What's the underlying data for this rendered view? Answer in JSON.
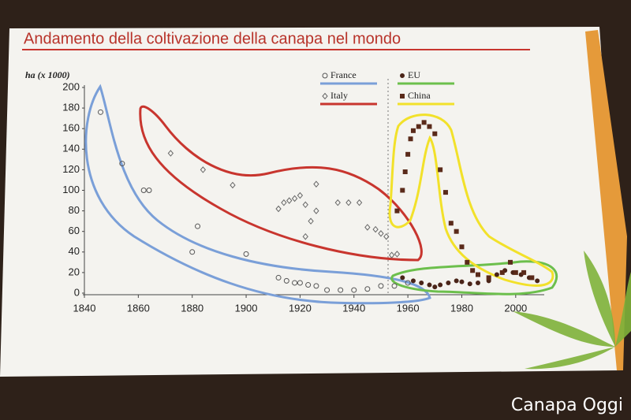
{
  "chart_data": {
    "type": "scatter",
    "title": "Andamento della coltivazione della canapa nel mondo",
    "y_label": "ha (x 1000)",
    "watermark": "Canapa Oggi",
    "xlim": [
      1840,
      2010
    ],
    "xticks": [
      1840,
      1860,
      1880,
      1900,
      1920,
      1940,
      1960,
      1980,
      2000
    ],
    "ylim": [
      0,
      200
    ],
    "yticks": [
      0,
      20,
      40,
      60,
      80,
      100,
      120,
      140,
      160,
      180,
      200
    ],
    "legend": "top",
    "series": [
      {
        "name": "France",
        "color": "#7a9fd8",
        "marker": "circle-open",
        "x": [
          1846,
          1854,
          1862,
          1864,
          1880,
          1882,
          1900,
          1912,
          1915,
          1918,
          1920,
          1923,
          1926,
          1930,
          1935,
          1940,
          1945,
          1950,
          1955,
          1960
        ],
        "values": [
          176,
          126,
          100,
          100,
          40,
          65,
          38,
          15,
          12,
          10,
          10,
          8,
          7,
          3,
          3,
          3,
          4,
          7,
          7,
          10
        ]
      },
      {
        "name": "Italy",
        "color": "#c8352e",
        "marker": "diamond-open",
        "x": [
          1872,
          1884,
          1895,
          1912,
          1914,
          1916,
          1918,
          1920,
          1922,
          1924,
          1922,
          1926,
          1926,
          1934,
          1938,
          1942,
          1945,
          1948,
          1950,
          1952,
          1954,
          1956
        ],
        "values": [
          136,
          120,
          105,
          82,
          88,
          90,
          92,
          95,
          86,
          70,
          55,
          106,
          80,
          88,
          88,
          88,
          64,
          62,
          58,
          55,
          37,
          38
        ]
      },
      {
        "name": "EU",
        "color": "#6cbf4c",
        "marker": "circle-filled",
        "x": [
          1958,
          1962,
          1965,
          1968,
          1970,
          1972,
          1975,
          1978,
          1980,
          1983,
          1986,
          1990,
          1993,
          1996,
          1999,
          2002,
          2005,
          2008
        ],
        "values": [
          15,
          12,
          10,
          8,
          6,
          8,
          10,
          12,
          11,
          9,
          10,
          12,
          18,
          22,
          20,
          18,
          15,
          12
        ]
      },
      {
        "name": "China",
        "color": "#f2e12a",
        "marker": "square-filled",
        "x": [
          1956,
          1958,
          1959,
          1960,
          1961,
          1962,
          1964,
          1966,
          1968,
          1970,
          1972,
          1974,
          1976,
          1978,
          1980,
          1982,
          1984,
          1986,
          1990,
          1995,
          1998,
          2000,
          2003,
          2006
        ],
        "values": [
          80,
          100,
          118,
          135,
          150,
          158,
          162,
          166,
          162,
          155,
          120,
          98,
          68,
          60,
          45,
          30,
          22,
          18,
          15,
          20,
          30,
          20,
          20,
          15
        ]
      }
    ]
  }
}
